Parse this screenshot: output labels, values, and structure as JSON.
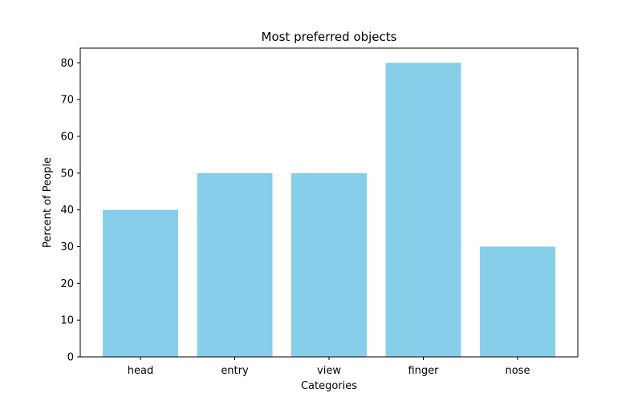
{
  "chart_data": {
    "type": "bar",
    "title": "Most preferred objects",
    "xlabel": "Categories",
    "ylabel": "Percent of People",
    "categories": [
      "head",
      "entry",
      "view",
      "finger",
      "nose"
    ],
    "values": [
      40,
      50,
      50,
      80,
      30
    ],
    "ylim": [
      0,
      84
    ],
    "yticks": [
      0,
      10,
      20,
      30,
      40,
      50,
      60,
      70,
      80
    ],
    "grid": false,
    "legend": "none",
    "colors": {
      "bar": "#87ceeb",
      "axis": "#000000",
      "background": "#ffffff"
    }
  }
}
